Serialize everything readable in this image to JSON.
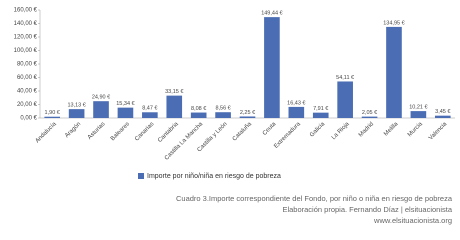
{
  "chart_data": {
    "type": "bar",
    "categories": [
      "Andalucía",
      "Aragón",
      "Asturias",
      "Baleares",
      "Canarias",
      "Cantabria",
      "Castilla La Mancha",
      "Castilla y León",
      "Cataluña",
      "Ceuta",
      "Extremadura",
      "Galicia",
      "La Rioja",
      "Madrid",
      "Melilla",
      "Murcia",
      "Valencia"
    ],
    "series": [
      {
        "name": "Importe por niño/niña en riesgo de pobreza",
        "color": "#4a6db3",
        "values": [
          1.9,
          13.13,
          24.9,
          15.34,
          8.47,
          33.15,
          8.08,
          8.56,
          2.25,
          149.44,
          16.43,
          7.91,
          54.11,
          2.05,
          134.95,
          10.21,
          3.45
        ],
        "value_labels": [
          "1,90 €",
          "13,13 €",
          "24,90 €",
          "15,34 €",
          "8,47 €",
          "33,15 €",
          "8,08 €",
          "8,56 €",
          "2,25 €",
          "149,44 €",
          "16,43 €",
          "7,91 €",
          "54,11 €",
          "2,05 €",
          "134,95 €",
          "10,21 €",
          "3,45 €"
        ]
      }
    ],
    "ylim": [
      0,
      160
    ],
    "yticks": [
      {
        "value": 0,
        "label": "0,00 €"
      },
      {
        "value": 20,
        "label": "20,00 €"
      },
      {
        "value": 40,
        "label": "40,00 €"
      },
      {
        "value": 60,
        "label": "60,00 €"
      },
      {
        "value": 80,
        "label": "80,00 €"
      },
      {
        "value": 100,
        "label": "100,00 €"
      },
      {
        "value": 120,
        "label": "120,00 €"
      },
      {
        "value": 140,
        "label": "140,00 €"
      },
      {
        "value": 160,
        "label": "160,00 €"
      }
    ],
    "legend": "bottom",
    "caption": [
      "Cuadro 3.Importe correspondiente del Fondo, por niño o niña en riesgo de pobreza",
      "Elaboración propia. Fernando Díaz | elsituacionista",
      "www.elsituacionista.org"
    ]
  }
}
